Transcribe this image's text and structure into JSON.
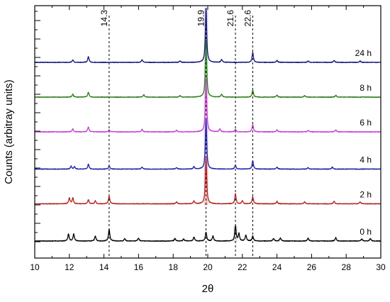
{
  "chart_data": {
    "type": "line",
    "xlabel": "2θ",
    "ylabel": "Counts (arbitray units)",
    "xlim": [
      10,
      30
    ],
    "x_ticks": [
      "10",
      "12",
      "14",
      "16",
      "18",
      "20",
      "22",
      "24",
      "26",
      "28",
      "30"
    ],
    "grid": false,
    "reference_lines": [
      {
        "x": 14.3,
        "label": "14.3"
      },
      {
        "x": 19.9,
        "label": "19.9"
      },
      {
        "x": 21.6,
        "label": "21.6"
      },
      {
        "x": 22.6,
        "label": "22.6"
      }
    ],
    "series": [
      {
        "name": "0 h",
        "color": "#000000",
        "band": "#dddddd",
        "baseline": 0.0,
        "peaks": [
          [
            11.95,
            0.14
          ],
          [
            12.25,
            0.14
          ],
          [
            13.5,
            0.1
          ],
          [
            14.3,
            0.24
          ],
          [
            15.2,
            0.05
          ],
          [
            16.0,
            0.06
          ],
          [
            18.1,
            0.05
          ],
          [
            18.6,
            0.04
          ],
          [
            19.2,
            0.08
          ],
          [
            19.9,
            0.18
          ],
          [
            20.3,
            0.1
          ],
          [
            21.6,
            0.3
          ],
          [
            21.8,
            0.15
          ],
          [
            22.2,
            0.12
          ],
          [
            22.6,
            0.1
          ],
          [
            23.8,
            0.05
          ],
          [
            24.2,
            0.06
          ],
          [
            25.8,
            0.06
          ],
          [
            27.4,
            0.07
          ],
          [
            28.9,
            0.04
          ],
          [
            29.4,
            0.05
          ]
        ]
      },
      {
        "name": "2 h",
        "color": "#b22222",
        "band": "#f2b3b3",
        "baseline": 0.75,
        "peaks": [
          [
            12.0,
            0.12
          ],
          [
            12.2,
            0.12
          ],
          [
            13.1,
            0.08
          ],
          [
            13.5,
            0.06
          ],
          [
            14.3,
            0.16
          ],
          [
            18.2,
            0.04
          ],
          [
            19.2,
            0.06
          ],
          [
            19.9,
            0.95
          ],
          [
            21.6,
            0.2
          ],
          [
            22.0,
            0.06
          ],
          [
            22.6,
            0.14
          ],
          [
            24.0,
            0.05
          ],
          [
            25.6,
            0.04
          ],
          [
            27.3,
            0.05
          ],
          [
            28.8,
            0.04
          ]
        ]
      },
      {
        "name": "4 h",
        "color": "#1f1fa8",
        "band": "#c9c9f0",
        "baseline": 1.45,
        "peaks": [
          [
            12.1,
            0.06
          ],
          [
            12.3,
            0.05
          ],
          [
            13.1,
            0.1
          ],
          [
            14.3,
            0.07
          ],
          [
            16.2,
            0.04
          ],
          [
            18.2,
            0.03
          ],
          [
            19.2,
            0.05
          ],
          [
            19.9,
            1.02
          ],
          [
            21.6,
            0.08
          ],
          [
            22.6,
            0.17
          ],
          [
            24.0,
            0.04
          ],
          [
            25.8,
            0.03
          ],
          [
            27.2,
            0.04
          ]
        ]
      },
      {
        "name": "6 h",
        "color": "#c040d0",
        "band": "#f6c6f0",
        "baseline": 2.2,
        "peaks": [
          [
            12.2,
            0.06
          ],
          [
            13.1,
            0.1
          ],
          [
            14.3,
            0.04
          ],
          [
            16.2,
            0.05
          ],
          [
            18.2,
            0.03
          ],
          [
            19.9,
            1.08
          ],
          [
            20.7,
            0.06
          ],
          [
            21.6,
            0.05
          ],
          [
            22.6,
            0.15
          ],
          [
            24.0,
            0.04
          ],
          [
            25.8,
            0.03
          ],
          [
            27.4,
            0.04
          ]
        ]
      },
      {
        "name": "8 h",
        "color": "#2e7d1e",
        "band": "#c7e8c0",
        "baseline": 2.9,
        "peaks": [
          [
            12.2,
            0.06
          ],
          [
            13.1,
            0.1
          ],
          [
            16.3,
            0.05
          ],
          [
            18.4,
            0.03
          ],
          [
            19.9,
            1.15
          ],
          [
            20.8,
            0.06
          ],
          [
            22.6,
            0.14
          ],
          [
            24.0,
            0.04
          ],
          [
            25.6,
            0.03
          ],
          [
            27.4,
            0.04
          ]
        ]
      },
      {
        "name": "24 h",
        "color": "#14147a",
        "band": "#d6d6ee",
        "baseline": 3.6,
        "peaks": [
          [
            12.2,
            0.05
          ],
          [
            13.1,
            0.12
          ],
          [
            16.2,
            0.05
          ],
          [
            18.4,
            0.03
          ],
          [
            19.9,
            1.1
          ],
          [
            20.8,
            0.06
          ],
          [
            22.6,
            0.2
          ],
          [
            24.0,
            0.04
          ],
          [
            25.8,
            0.03
          ],
          [
            27.3,
            0.04
          ],
          [
            28.8,
            0.03
          ]
        ]
      }
    ]
  }
}
